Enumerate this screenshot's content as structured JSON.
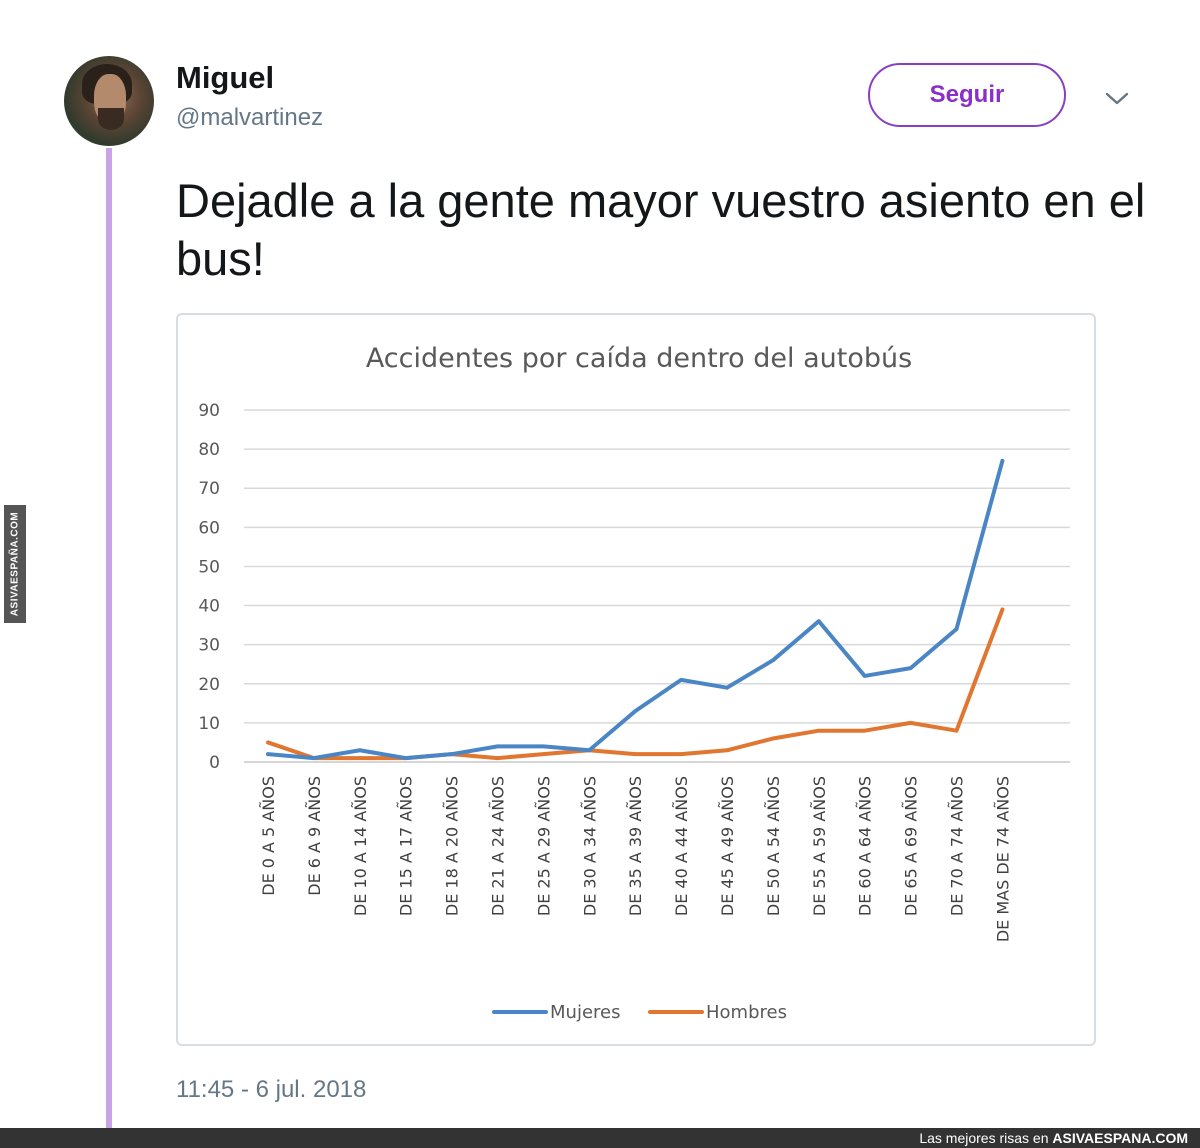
{
  "watermark": "ASIVAESPAÑA.COM",
  "tweet": {
    "author_name": "Miguel",
    "author_handle": "@malvartinez",
    "follow_label": "Seguir",
    "text": "Dejadle a la gente mayor vuestro asiento en el bus!",
    "timestamp": "11:45 - 6 jul. 2018"
  },
  "footer": {
    "prefix": "Las mejores risas en",
    "brand": "ASIVAESPANA.COM"
  },
  "colors": {
    "mujeres": "#4a86c5",
    "hombres": "#e0762f",
    "follow": "#8a2fc8",
    "thread_line": "#c9a3e6"
  },
  "chart_data": {
    "type": "line",
    "title": "Accidentes por caída dentro del autobús",
    "categories": [
      "DE 0 A 5 AÑOS",
      "DE 6 A 9 AÑOS",
      "DE 10 A 14 AÑOS",
      "DE 15 A 17 AÑOS",
      "DE 18 A 20 AÑOS",
      "DE 21 A 24 AÑOS",
      "DE 25 A 29 AÑOS",
      "DE 30 A 34 AÑOS",
      "DE 35 A 39 AÑOS",
      "DE 40 A 44 AÑOS",
      "DE 45 A 49 AÑOS",
      "DE 50 A 54 AÑOS",
      "DE 55 A 59 AÑOS",
      "DE 60 A 64 AÑOS",
      "DE 65 A 69 AÑOS",
      "DE 70 A 74 AÑOS",
      "DE MAS DE 74 AÑOS"
    ],
    "series": [
      {
        "name": "Mujeres",
        "values": [
          2,
          1,
          3,
          1,
          2,
          4,
          4,
          3,
          13,
          21,
          19,
          26,
          36,
          22,
          24,
          34,
          77
        ]
      },
      {
        "name": "Hombres",
        "values": [
          5,
          1,
          1,
          1,
          2,
          1,
          2,
          3,
          2,
          2,
          3,
          6,
          8,
          8,
          10,
          8,
          39
        ]
      }
    ],
    "ylim": [
      0,
      90
    ],
    "yticks": [
      0,
      10,
      20,
      30,
      40,
      50,
      60,
      70,
      80,
      90
    ],
    "grid": true,
    "legend_position": "bottom"
  }
}
